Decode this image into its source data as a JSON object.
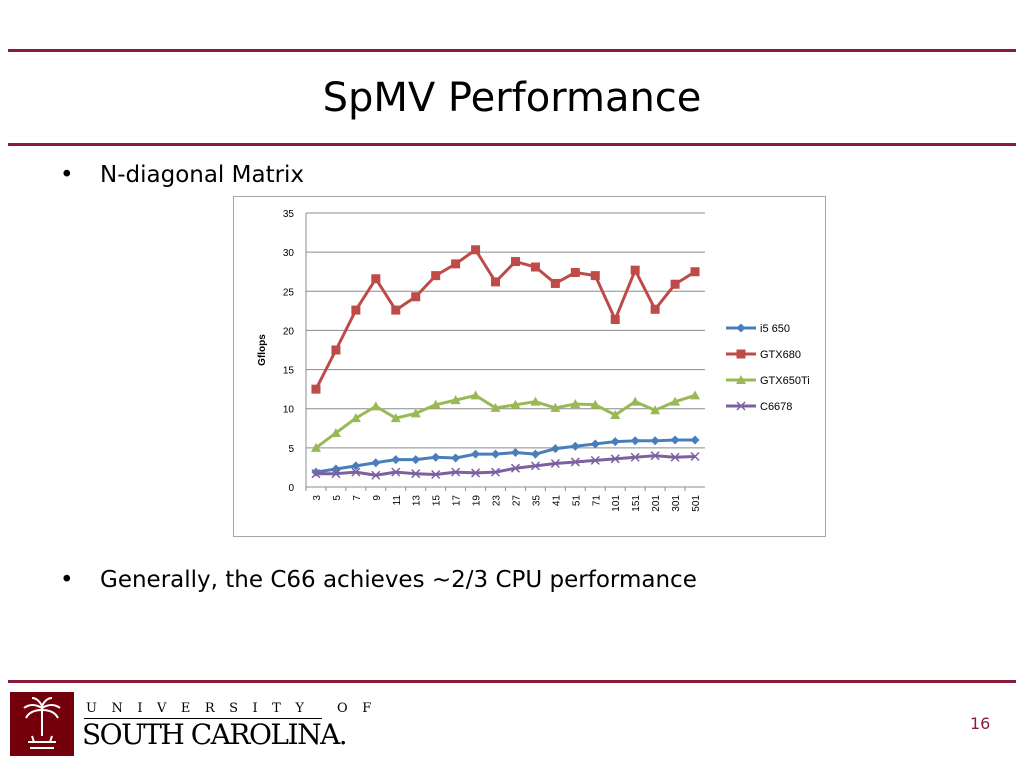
{
  "slide": {
    "title": "SpMV Performance",
    "bullets": [
      "N-diagonal Matrix",
      "Generally, the C66 achieves ~2/3 CPU performance"
    ],
    "bullet_symbol": "•",
    "page_number": "16",
    "accent_color": "#8b1d3a"
  },
  "logo": {
    "line1": "UNIVERSITY OF",
    "line2": "SOUTH CAROLINA."
  },
  "chart_data": {
    "type": "line",
    "title": "",
    "xlabel": "",
    "ylabel": "Gflops",
    "ylim": [
      0,
      35
    ],
    "yticks": [
      0,
      5,
      10,
      15,
      20,
      25,
      30,
      35
    ],
    "grid": true,
    "legend": "right",
    "categories": [
      "3",
      "5",
      "7",
      "9",
      "11",
      "13",
      "15",
      "17",
      "19",
      "23",
      "27",
      "35",
      "41",
      "51",
      "71",
      "101",
      "151",
      "201",
      "301",
      "501"
    ],
    "series": [
      {
        "name": "i5 650",
        "color": "#4a7ebb",
        "marker": "diamond",
        "values": [
          1.9,
          2.3,
          2.7,
          3.1,
          3.5,
          3.5,
          3.8,
          3.7,
          4.2,
          4.2,
          4.4,
          4.2,
          4.9,
          5.2,
          5.5,
          5.8,
          5.9,
          5.9,
          6.0,
          6.0
        ]
      },
      {
        "name": "GTX680",
        "color": "#be4b48",
        "marker": "square",
        "values": [
          12.5,
          17.5,
          22.6,
          26.6,
          22.6,
          24.3,
          27.0,
          28.5,
          30.3,
          26.2,
          28.8,
          28.1,
          26.0,
          27.4,
          27.0,
          21.4,
          27.7,
          22.7,
          25.9,
          27.5
        ]
      },
      {
        "name": "GTX650Ti",
        "color": "#98b954",
        "marker": "triangle",
        "values": [
          5.0,
          6.9,
          8.8,
          10.3,
          8.8,
          9.4,
          10.5,
          11.1,
          11.7,
          10.1,
          10.5,
          10.9,
          10.1,
          10.6,
          10.5,
          9.2,
          10.9,
          9.8,
          10.9,
          11.7
        ]
      },
      {
        "name": "C6678",
        "color": "#7d60a0",
        "marker": "x",
        "values": [
          1.7,
          1.7,
          1.9,
          1.5,
          1.9,
          1.7,
          1.6,
          1.9,
          1.8,
          1.9,
          2.4,
          2.7,
          3.0,
          3.2,
          3.4,
          3.6,
          3.8,
          4.0,
          3.8,
          3.9
        ]
      }
    ]
  }
}
